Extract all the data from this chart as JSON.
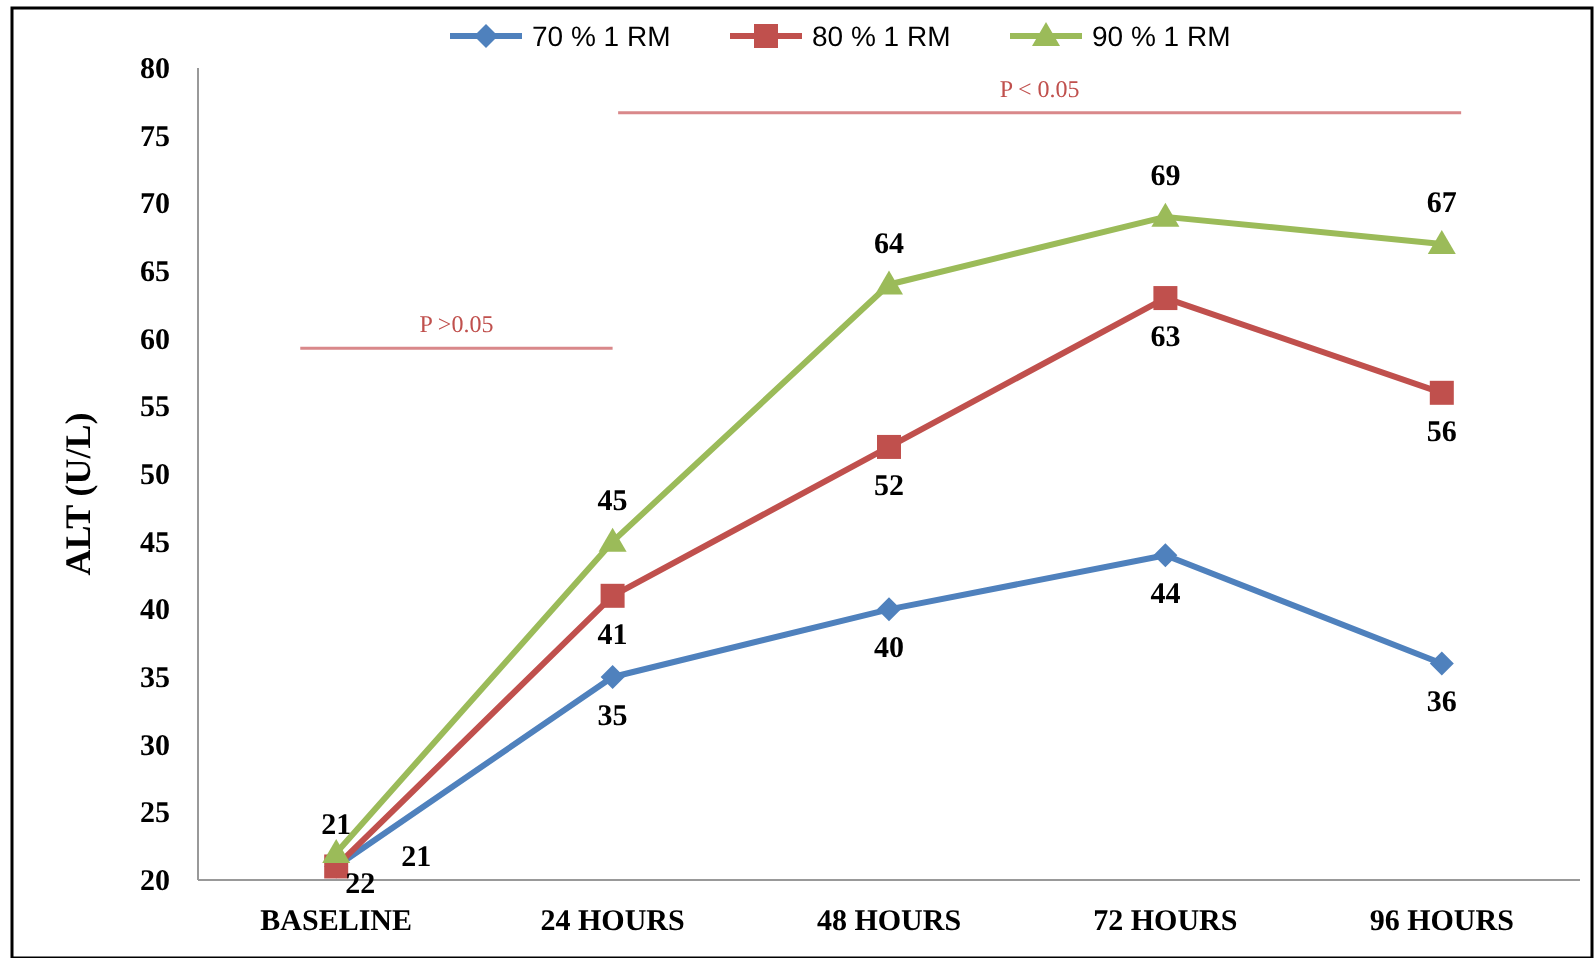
{
  "chart_data": {
    "type": "line",
    "ylabel": "ALT  (U/L)",
    "categories": [
      "BASELINE",
      "24 HOURS",
      "48 HOURS",
      "72 HOURS",
      "96 HOURS"
    ],
    "series": [
      {
        "name": "70 % 1 RM",
        "color": "#4f81bd",
        "marker": "diamond",
        "values": [
          21,
          35,
          40,
          44,
          36
        ],
        "value_labels": [
          "21",
          "35",
          "40",
          "44",
          "36"
        ]
      },
      {
        "name": "80 % 1 RM",
        "color": "#c0504d",
        "marker": "square",
        "values": [
          21,
          41,
          52,
          63,
          56
        ],
        "value_labels": [
          "21",
          "41",
          "52",
          "63",
          "56"
        ]
      },
      {
        "name": "90 % 1 RM",
        "color": "#9bbb59",
        "marker": "triangle",
        "values": [
          22,
          45,
          64,
          69,
          67
        ],
        "value_labels": [
          "22",
          "45",
          "64",
          "69",
          "67"
        ]
      }
    ],
    "ylim": [
      20,
      80
    ],
    "yticks": [
      20,
      25,
      30,
      35,
      40,
      45,
      50,
      55,
      60,
      65,
      70,
      75,
      80
    ],
    "legend": "top",
    "grid": false,
    "annotations": [
      "P >0.05",
      "P < 0.05"
    ]
  }
}
